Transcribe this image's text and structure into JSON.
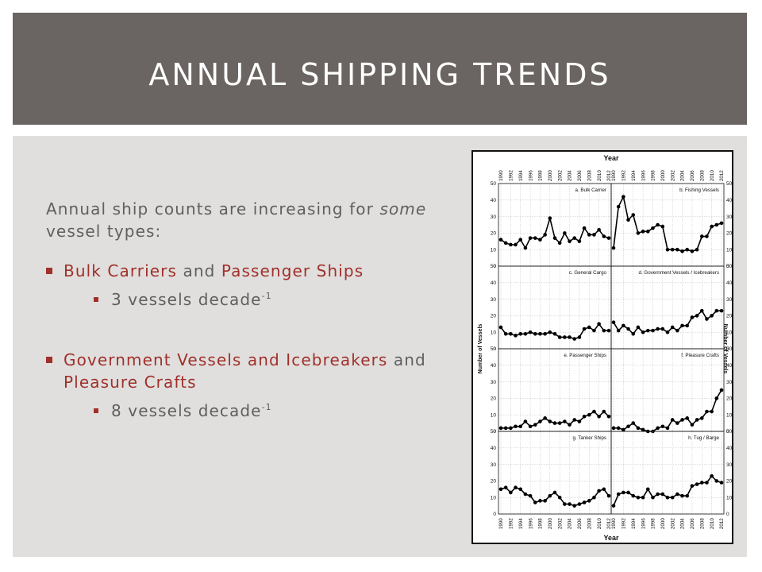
{
  "slide": {
    "title": "ANNUAL SHIPPING TRENDS",
    "intro": {
      "part1": "Annual ship counts are increasing for ",
      "emphasis": "some",
      "part2": " vessel types:"
    },
    "bullets": [
      {
        "accent1": "Bulk Carriers",
        "mid": " and ",
        "accent2": "Passenger Ships",
        "sub": {
          "text": "3 vessels decade",
          "sup": "-1"
        }
      },
      {
        "accent1": "Government Vessels and Icebreakers",
        "mid": " and ",
        "accent2": "Pleasure Crafts",
        "sub": {
          "text": "8 vessels decade",
          "sup": "-1"
        }
      }
    ],
    "colors": {
      "title_bar": "#6a6462",
      "panel": "#e0dfde",
      "accent": "#a0302a",
      "body_text": "#5f5f5f"
    }
  },
  "chart_data": {
    "type": "line",
    "xlabel": "Year",
    "ylabel_left": "Number of Vessels",
    "ylabel_right": "Number of Vessels",
    "x": [
      1990,
      1991,
      1992,
      1993,
      1994,
      1995,
      1996,
      1997,
      1998,
      1999,
      2000,
      2001,
      2002,
      2003,
      2004,
      2005,
      2006,
      2007,
      2008,
      2009,
      2010,
      2011,
      2012
    ],
    "x_ticks": [
      "1990",
      "1992",
      "1994",
      "1996",
      "1998",
      "2000",
      "2002",
      "2004",
      "2006",
      "2008",
      "2010",
      "2012"
    ],
    "ylim": [
      0,
      50
    ],
    "y_ticks": [
      "0",
      "10",
      "20",
      "30",
      "40",
      "50"
    ],
    "grid": true,
    "panels": [
      {
        "label": "a. Bulk Carrier",
        "values": [
          16,
          14,
          13,
          13,
          16,
          11,
          17,
          17,
          16,
          19,
          29,
          17,
          14,
          20,
          15,
          17,
          15,
          23,
          19,
          19,
          22,
          18,
          17
        ]
      },
      {
        "label": "b. Fishing Vessels",
        "values": [
          11,
          36,
          42,
          28,
          31,
          20,
          21,
          21,
          23,
          25,
          24,
          10,
          10,
          10,
          9,
          10,
          9,
          10,
          18,
          18,
          24,
          25,
          26
        ]
      },
      {
        "label": "c. General Cargo",
        "values": [
          13,
          9,
          9,
          8,
          9,
          9,
          10,
          9,
          9,
          9,
          10,
          9,
          7,
          7,
          7,
          6,
          7,
          12,
          13,
          11,
          15,
          11,
          11
        ]
      },
      {
        "label": "d. Government Vessels / Icebreakers",
        "values": [
          16,
          11,
          14,
          12,
          9,
          13,
          10,
          11,
          11,
          12,
          12,
          10,
          13,
          11,
          14,
          14,
          19,
          20,
          23,
          18,
          20,
          23,
          23
        ]
      },
      {
        "label": "e. Passenger Ships",
        "values": [
          2,
          2,
          2,
          3,
          3,
          6,
          3,
          4,
          6,
          8,
          6,
          5,
          5,
          6,
          4,
          7,
          6,
          9,
          10,
          12,
          9,
          12,
          9
        ]
      },
      {
        "label": "f. Pleasure Crafts",
        "values": [
          2,
          2,
          1,
          3,
          5,
          2,
          1,
          0,
          0,
          2,
          3,
          2,
          7,
          5,
          7,
          8,
          4,
          7,
          8,
          12,
          12,
          20,
          25
        ]
      },
      {
        "label": "g. Tanker Ships",
        "values": [
          15,
          16,
          13,
          16,
          15,
          12,
          11,
          7,
          8,
          8,
          11,
          13,
          10,
          6,
          6,
          5,
          6,
          7,
          8,
          10,
          14,
          15,
          11
        ]
      },
      {
        "label": "h. Tug / Barge",
        "values": [
          5,
          12,
          13,
          13,
          11,
          10,
          10,
          15,
          10,
          12,
          12,
          10,
          10,
          12,
          11,
          11,
          17,
          18,
          19,
          19,
          23,
          20,
          19
        ]
      }
    ]
  }
}
